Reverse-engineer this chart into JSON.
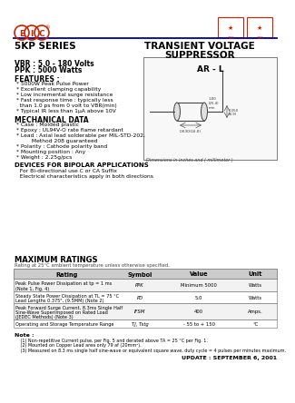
{
  "title_series": "5KP SERIES",
  "title_main": "TRANSIENT VOLTAGE\nSUPPRESSOR",
  "vbr_range": "VBR : 5.0 - 180 Volts",
  "ppc": "PPK : 5000 Watts",
  "features_title": "FEATURES :",
  "features": [
    "* 5000W Peak Pulse Power",
    "* Excellent clamping capability",
    "* Low incremental surge resistance",
    "* Fast response time : typically less",
    "  than 1.0 ps from 0 volt to VBR(min)",
    "* Typical IR less than 1μA above 10V"
  ],
  "mech_title": "MECHANICAL DATA",
  "mech": [
    "* Case : Molded plastic",
    "* Epoxy : UL94V-O rate flame retardant",
    "* Lead : Axial lead solderable per MIL-STD-202,",
    "         Method 208 guaranteed",
    "* Polarity : Cathode polarity band",
    "* Mounting position : Any",
    "* Weight : 2.25g/pcs"
  ],
  "bipolar_title": "DEVICES FOR BIPOLAR APPLICATIONS",
  "bipolar": [
    "  For Bi-directional use C or CA Suffix",
    "  Electrical characteristics apply in both directions"
  ],
  "max_title": "MAXIMUM RATINGS",
  "max_subtitle": "Rating at 25°C ambient temperature unless otherwise specified.",
  "table_headers": [
    "Rating",
    "Symbol",
    "Value",
    "Unit"
  ],
  "table_rows": [
    [
      "Peak Pulse Power Dissipation at tp = 1 ms\n(Note 1, Fig. 4)",
      "PPK",
      "Minimum 5000",
      "Watts"
    ],
    [
      "Steady State Power Dissipation at TL = 75 °C\nLead Lengths 0.375\", (9.5MM) (Note 2)",
      "PD",
      "5.0",
      "Watts"
    ],
    [
      "Peak Forward Surge Current, 8.3ms Single Half\nSine-Wave Superimposed on Rated Load\n(JEDEC Methods) (Note 3)",
      "IFSM",
      "400",
      "Amps."
    ],
    [
      "Operating and Storage Temperature Range",
      "TJ, Tstg",
      "- 55 to + 150",
      "°C"
    ]
  ],
  "note_title": "Note :",
  "notes": [
    "   (1) Non-repetitive Current pulse, per Fig. 5 and derated above TA = 25 °C per Fig. 1.",
    "   (2) Mounted on Copper Lead area only 79 af (20mm²).",
    "   (3) Measured on 8.3 ms single half sine-wave or equivalent square wave, duty cycle = 4 pulses per minutes maximum."
  ],
  "update": "UPDATE : SEPTEMBER 6, 2001",
  "pkg_label": "AR - L",
  "dim_label": "Dimensions in inches and ( millimeter )",
  "bg_color": "#ffffff",
  "red_color": "#cc2200",
  "blue_color": "#000099",
  "text_color": "#000000",
  "gray_color": "#888888",
  "header_bg": "#cccccc",
  "row_bg1": "#f2f2f2",
  "row_bg2": "#ffffff"
}
